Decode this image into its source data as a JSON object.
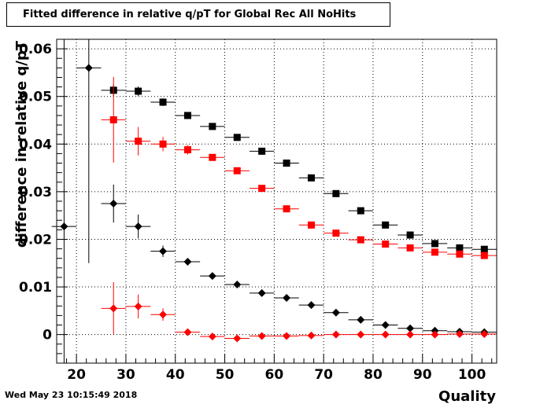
{
  "header": {
    "title": "Fitted difference in relative q/pT  for Global Rec All NoHits",
    "timestamp": "Wed May 23 10:15:49 2018"
  },
  "chart_data": {
    "type": "scatter",
    "title": "Fitted difference in relative q/pT  for Global Rec All NoHits",
    "xlabel": "Quality",
    "ylabel": "difference in relative q/pT",
    "xlim": [
      16,
      105
    ],
    "ylim": [
      -0.006,
      0.062
    ],
    "grid": true,
    "x_ticks": [
      20,
      30,
      40,
      50,
      60,
      70,
      80,
      90,
      100
    ],
    "x_tick_labels": [
      "20",
      "30",
      "40",
      "50",
      "60",
      "70",
      "80",
      "90",
      "100"
    ],
    "y_ticks": [
      0,
      0.01,
      0.02,
      0.03,
      0.04,
      0.05,
      0.06
    ],
    "y_tick_labels": [
      "0",
      "0.01",
      "0.02",
      "0.03",
      "0.04",
      "0.05",
      "0.06"
    ],
    "series": [
      {
        "marker": "square",
        "color": "#000000",
        "x": [
          27.5,
          32.5,
          37.5,
          42.5,
          47.5,
          52.5,
          57.5,
          62.5,
          67.5,
          72.5,
          77.5,
          82.5,
          87.5,
          92.5,
          97.5,
          102.5
        ],
        "y": [
          0.0513,
          0.0511,
          0.0488,
          0.046,
          0.0437,
          0.0414,
          0.0385,
          0.036,
          0.0329,
          0.0296,
          0.026,
          0.023,
          0.0209,
          0.0191,
          0.0182,
          0.0179
        ],
        "yerr": [
          0.0012,
          0.001,
          0.0008,
          0.0007,
          0.0003,
          0.0003,
          0.0003,
          0.0003,
          0.0002,
          0.0002,
          0.0002,
          0.0002,
          0.0002,
          0.0002,
          0.0002,
          0.0002
        ]
      },
      {
        "marker": "square",
        "color": "#ff0000",
        "x": [
          27.5,
          32.5,
          37.5,
          42.5,
          47.5,
          52.5,
          57.5,
          62.5,
          67.5,
          72.5,
          77.5,
          82.5,
          87.5,
          92.5,
          97.5,
          102.5
        ],
        "y": [
          0.0451,
          0.0406,
          0.04,
          0.0388,
          0.0372,
          0.0344,
          0.0307,
          0.0264,
          0.023,
          0.0213,
          0.0199,
          0.019,
          0.0182,
          0.0173,
          0.0169,
          0.0166
        ],
        "yerr": [
          0.009,
          0.003,
          0.0015,
          0.001,
          0.0004,
          0.0003,
          0.0003,
          0.0003,
          0.0003,
          0.0002,
          0.0002,
          0.0002,
          0.0002,
          0.0002,
          0.0002,
          0.0002
        ]
      },
      {
        "marker": "diamond",
        "color": "#000000",
        "x": [
          17.5,
          22.5,
          27.5,
          32.5,
          37.5,
          42.5,
          47.5,
          52.5,
          57.5,
          62.5,
          67.5,
          72.5,
          77.5,
          82.5,
          87.5,
          92.5,
          97.5,
          102.5
        ],
        "y": [
          0.0227,
          0.056,
          0.0275,
          0.0227,
          0.0175,
          0.0153,
          0.0123,
          0.0105,
          0.0087,
          0.0077,
          0.0062,
          0.0046,
          0.0031,
          0.002,
          0.0013,
          0.0008,
          0.0006,
          0.0005
        ],
        "yerr": [
          0.04,
          0.041,
          0.004,
          0.0025,
          0.0012,
          0.0006,
          0.0004,
          0.0003,
          0.0003,
          0.0003,
          0.0002,
          0.0002,
          0.0002,
          0.0002,
          0.0002,
          0.0002,
          0.0002,
          0.0002
        ]
      },
      {
        "marker": "diamond",
        "color": "#ff0000",
        "x": [
          27.5,
          32.5,
          37.5,
          42.5,
          47.5,
          52.5,
          57.5,
          62.5,
          67.5,
          72.5,
          77.5,
          82.5,
          87.5,
          92.5,
          97.5,
          102.5
        ],
        "y": [
          0.0055,
          0.0059,
          0.0042,
          0.0005,
          -0.0004,
          -0.0008,
          -0.0003,
          -0.0003,
          -0.0002,
          0.0,
          0.0,
          0.0,
          0.0,
          0.0,
          0.0001,
          0.0001
        ],
        "yerr": [
          0.0055,
          0.0025,
          0.0013,
          0.0005,
          0.0003,
          0.0003,
          0.0002,
          0.0002,
          0.0002,
          0.0002,
          0.0002,
          0.0002,
          0.0002,
          0.0002,
          0.0002,
          0.0002
        ]
      }
    ]
  }
}
